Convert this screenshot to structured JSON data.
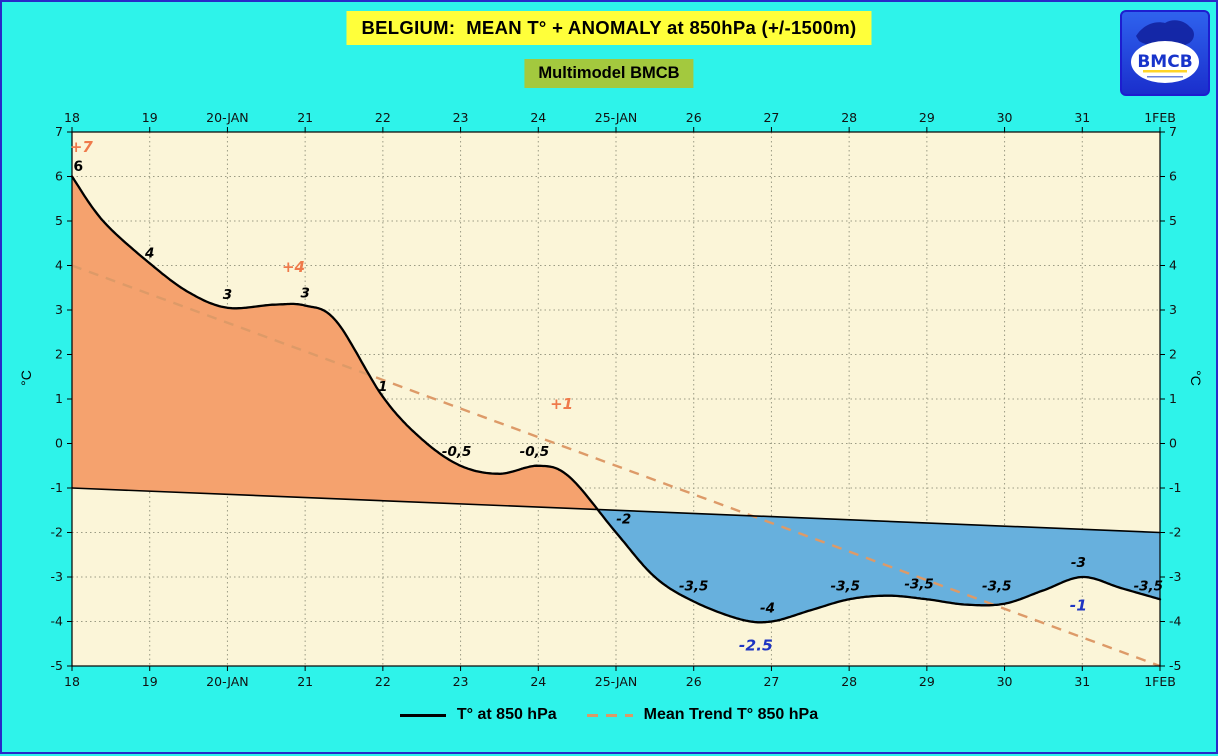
{
  "header": {
    "title": "BELGIUM:  MEAN T° + ANOMALY at 850hPa (+/-1500m)",
    "subtitle": "Multimodel BMCB",
    "logo_text": "BMCB"
  },
  "axes": {
    "y_label_left": "°C",
    "y_label_right": "°C"
  },
  "legend": {
    "series1": "T° at 850 hPa",
    "series2": "Mean Trend T° 850 hPa"
  },
  "colors": {
    "page_bg": "#2ef3ea",
    "title_bg": "#ffff3a",
    "subtitle_bg": "#a3c93e",
    "positive_anomaly": "#f5a26e",
    "negative_anomaly": "#67b0dd",
    "trend_line": "#dd9a68",
    "frame_border": "#2929c8"
  },
  "chart_data": {
    "type": "line",
    "title": "BELGIUM:  MEAN T° + ANOMALY at 850hPa (+/-1500m)",
    "subtitle": "Multimodel BMCB",
    "xlim": [
      18,
      32
    ],
    "ylim": [
      -5,
      7
    ],
    "plot_bg": "#fbf5d8",
    "grid": true,
    "x_ticks": [
      {
        "x": 18,
        "label": "18"
      },
      {
        "x": 19,
        "label": "19"
      },
      {
        "x": 20,
        "label": "20-JAN"
      },
      {
        "x": 21,
        "label": "21"
      },
      {
        "x": 22,
        "label": "22"
      },
      {
        "x": 23,
        "label": "23"
      },
      {
        "x": 24,
        "label": "24"
      },
      {
        "x": 25,
        "label": "25-JAN"
      },
      {
        "x": 26,
        "label": "26"
      },
      {
        "x": 27,
        "label": "27"
      },
      {
        "x": 28,
        "label": "28"
      },
      {
        "x": 29,
        "label": "29"
      },
      {
        "x": 30,
        "label": "30"
      },
      {
        "x": 31,
        "label": "31"
      },
      {
        "x": 32,
        "label": "1FEB"
      }
    ],
    "y_ticks": [
      7,
      6,
      5,
      4,
      3,
      2,
      1,
      0,
      -1,
      -2,
      -3,
      -4,
      -5
    ],
    "series": [
      {
        "name": "T° at 850 hPa",
        "type": "spline",
        "color": "#000000",
        "width": 2.3,
        "points": [
          [
            18,
            6.0
          ],
          [
            18.4,
            5.0
          ],
          [
            19,
            4.05
          ],
          [
            19.5,
            3.4
          ],
          [
            20,
            3.05
          ],
          [
            20.6,
            3.12
          ],
          [
            21,
            3.1
          ],
          [
            21.4,
            2.75
          ],
          [
            22,
            1.05
          ],
          [
            22.5,
            0.1
          ],
          [
            23,
            -0.5
          ],
          [
            23.5,
            -0.68
          ],
          [
            24,
            -0.5
          ],
          [
            24.4,
            -0.75
          ],
          [
            25,
            -2.0
          ],
          [
            25.5,
            -3.0
          ],
          [
            26,
            -3.55
          ],
          [
            26.6,
            -3.95
          ],
          [
            27,
            -4.0
          ],
          [
            27.5,
            -3.75
          ],
          [
            28,
            -3.5
          ],
          [
            28.5,
            -3.42
          ],
          [
            29,
            -3.5
          ],
          [
            29.5,
            -3.62
          ],
          [
            30,
            -3.6
          ],
          [
            30.5,
            -3.3
          ],
          [
            31,
            -3.0
          ],
          [
            31.5,
            -3.25
          ],
          [
            32,
            -3.5
          ]
        ]
      },
      {
        "name": "Reference level",
        "type": "line",
        "color": "#000000",
        "width": 1.6,
        "points": [
          [
            18,
            -1
          ],
          [
            32,
            -2
          ]
        ]
      },
      {
        "name": "Mean Trend T° 850 hPa",
        "type": "dashed",
        "color": "#dd9a68",
        "width": 2.4,
        "points": [
          [
            18,
            4
          ],
          [
            32,
            -5
          ]
        ]
      }
    ],
    "anomaly_fill": {
      "positive_color": "#f5a26e",
      "negative_color": "#67b0dd"
    },
    "annotations": [
      {
        "x": 18.12,
        "y": 6.55,
        "text": "+7",
        "class": "pos"
      },
      {
        "x": 18.08,
        "y": 6.12,
        "text": "6",
        "class": "pt-bold"
      },
      {
        "x": 19.0,
        "y": 4.18,
        "text": "4",
        "class": "pt"
      },
      {
        "x": 20.0,
        "y": 3.25,
        "text": "3",
        "class": "pt"
      },
      {
        "x": 21.0,
        "y": 3.28,
        "text": "3",
        "class": "pt"
      },
      {
        "x": 20.85,
        "y": 3.85,
        "text": "+4",
        "class": "pos"
      },
      {
        "x": 22.0,
        "y": 1.18,
        "text": "1",
        "class": "pt"
      },
      {
        "x": 22.95,
        "y": -0.28,
        "text": "-0,5",
        "class": "pt"
      },
      {
        "x": 23.95,
        "y": -0.28,
        "text": "-0,5",
        "class": "pt"
      },
      {
        "x": 24.3,
        "y": 0.78,
        "text": "+1",
        "class": "pos"
      },
      {
        "x": 25.1,
        "y": -1.8,
        "text": "-2",
        "class": "pt"
      },
      {
        "x": 26.0,
        "y": -3.3,
        "text": "-3,5",
        "class": "pt"
      },
      {
        "x": 26.95,
        "y": -3.8,
        "text": "-4",
        "class": "pt"
      },
      {
        "x": 26.8,
        "y": -4.65,
        "text": "-2.5",
        "class": "neg"
      },
      {
        "x": 27.95,
        "y": -3.3,
        "text": "-3,5",
        "class": "pt"
      },
      {
        "x": 28.9,
        "y": -3.26,
        "text": "-3,5",
        "class": "pt"
      },
      {
        "x": 29.9,
        "y": -3.3,
        "text": "-3,5",
        "class": "pt"
      },
      {
        "x": 30.95,
        "y": -2.78,
        "text": "-3",
        "class": "pt"
      },
      {
        "x": 30.95,
        "y": -3.75,
        "text": "-1",
        "class": "neg"
      },
      {
        "x": 31.85,
        "y": -3.3,
        "text": "-3,5",
        "class": "pt"
      }
    ]
  }
}
